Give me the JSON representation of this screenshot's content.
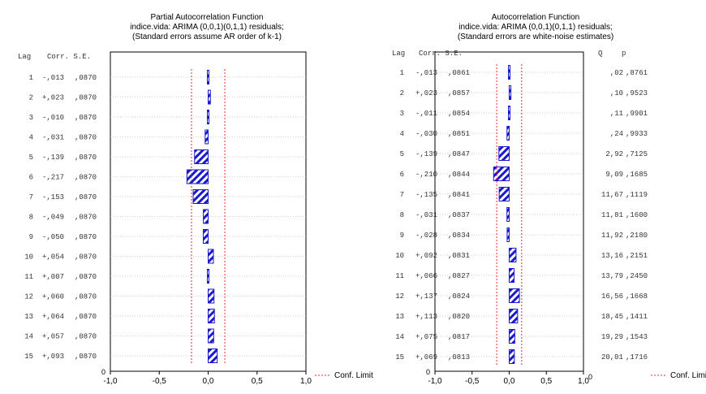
{
  "palette": {
    "bar": "#1a1acc",
    "hatch": "#1a1acc",
    "conf": "#e03030",
    "grid": "#bfbfbf",
    "axis": "#000000"
  },
  "chart_data": [
    {
      "type": "bar",
      "orientation": "horizontal",
      "title": [
        "Partial Autocorrelation Function",
        "indice.vida: ARIMA (0,0,1)(0,1,1) residuals;",
        "(Standard errors assume AR order of k-1)"
      ],
      "columns": [
        "Lag",
        "Corr.",
        "S.E."
      ],
      "lags": [
        "1",
        "2",
        "3",
        "4",
        "5",
        "6",
        "7",
        "8",
        "9",
        "10",
        "11",
        "12",
        "13",
        "14",
        "15"
      ],
      "corr_labels": [
        "-,013",
        "+,023",
        "-,010",
        "-,031",
        "-,139",
        "-,217",
        "-,153",
        "-,049",
        "-,050",
        "+,054",
        "+,007",
        "+,060",
        "+,064",
        "+,057",
        "+,093"
      ],
      "corr": [
        -0.013,
        0.023,
        -0.01,
        -0.031,
        -0.139,
        -0.217,
        -0.153,
        -0.049,
        -0.05,
        0.054,
        0.007,
        0.06,
        0.064,
        0.057,
        0.093
      ],
      "se_labels": [
        ",0870",
        ",0870",
        ",0870",
        ",0870",
        ",0870",
        ",0870",
        ",0870",
        ",0870",
        ",0870",
        ",0870",
        ",0870",
        ",0870",
        ",0870",
        ",0870",
        ",0870"
      ],
      "conf_limit": 0.1705,
      "xlim": [
        -1.0,
        1.0
      ],
      "x_ticks": [
        "-1,0",
        "-0,5",
        "0,0",
        "0,5",
        "1,0"
      ],
      "x_tick_values": [
        -1.0,
        -0.5,
        0.0,
        0.5,
        1.0
      ],
      "y_zero_label": "0",
      "legend_label": "Conf. Limit",
      "legend_position": "bottom-right"
    },
    {
      "type": "bar",
      "orientation": "horizontal",
      "title": [
        "Autocorrelation Function",
        "indice.vida: ARIMA (0,0,1)(0,1,1) residuals;",
        "(Standard errors are white-noise estimates)"
      ],
      "columns": [
        "Lag",
        "Corr.",
        "S.E."
      ],
      "right_columns": [
        "Q",
        "p"
      ],
      "lags": [
        "1",
        "2",
        "3",
        "4",
        "5",
        "6",
        "7",
        "8",
        "9",
        "10",
        "11",
        "12",
        "13",
        "14",
        "15"
      ],
      "corr_labels": [
        "-,013",
        "+,023",
        "-,011",
        "-,030",
        "-,139",
        "-,210",
        "-,135",
        "-,031",
        "-,028",
        "+,092",
        "+,066",
        "+,137",
        "+,113",
        "+,075",
        "+,069"
      ],
      "corr": [
        -0.013,
        0.023,
        -0.011,
        -0.03,
        -0.139,
        -0.21,
        -0.135,
        -0.031,
        -0.028,
        0.092,
        0.066,
        0.137,
        0.113,
        0.075,
        0.069
      ],
      "se_labels": [
        ",0861",
        ",0857",
        ",0854",
        ",0851",
        ",0847",
        ",0844",
        ",0841",
        ",0837",
        ",0834",
        ",0831",
        ",0827",
        ",0824",
        ",0820",
        ",0817",
        ",0813"
      ],
      "q_labels": [
        ",02",
        ",10",
        ",11",
        ",24",
        "2,92",
        "9,09",
        "11,67",
        "11,81",
        "11,92",
        "13,16",
        "13,79",
        "16,56",
        "18,45",
        "19,29",
        "20,01"
      ],
      "p_labels": [
        ",8761",
        ",9523",
        ",9901",
        ",9933",
        ",7125",
        ",1685",
        ",1119",
        ",1600",
        ",2180",
        ",2151",
        ",2450",
        ",1668",
        ",1411",
        ",1543",
        ",1716"
      ],
      "conf_limit": 0.168,
      "xlim": [
        -1.0,
        1.0
      ],
      "x_ticks": [
        "-1,0",
        "-0,5",
        "0,0",
        "0,5",
        "1,0"
      ],
      "x_tick_values": [
        -1.0,
        -0.5,
        0.0,
        0.5,
        1.0
      ],
      "y_zero_label": "0",
      "y_right_zero_label": "0",
      "legend_label": "Conf. Limit",
      "legend_position": "bottom-right"
    }
  ]
}
